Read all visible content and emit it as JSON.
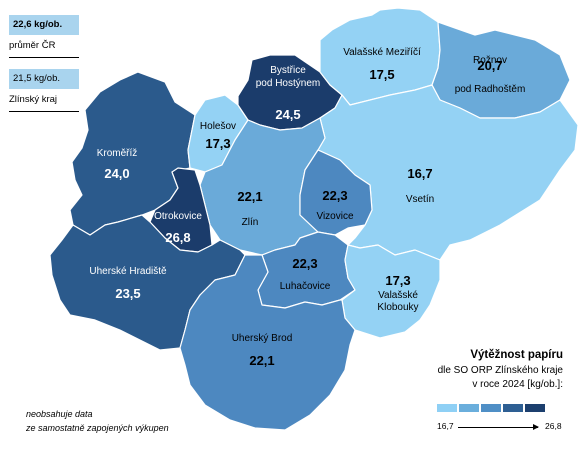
{
  "legend_boxes": {
    "cr": {
      "value": "22,6 kg/ob.",
      "label": "průměr ČR"
    },
    "zk": {
      "value": "21,5 kg/ob.",
      "label": "Zlínský kraj"
    }
  },
  "legend": {
    "title": "Výtěžnost papíru",
    "line1": "dle SO ORP Zlínského kraje",
    "line2": "v roce 2024 [kg/ob.]:",
    "min": "16,7",
    "max": "26,8",
    "colors": [
      "#8fd0f5",
      "#6aaedc",
      "#4f8fc6",
      "#2e5f93",
      "#1c3f6e"
    ]
  },
  "note": {
    "line1": "neobsahuje data",
    "line2": "ze samostatně zapojených výkupen"
  },
  "regions": [
    {
      "id": "kromeriz",
      "name": "Kroměříž",
      "value": "24,0",
      "color": "#2b5a8c",
      "text": "#ffffff"
    },
    {
      "id": "holesov",
      "name": "Holešov",
      "value": "17,3",
      "color": "#94d2f4",
      "text": "#000000"
    },
    {
      "id": "bystrice",
      "name": "Bystřice",
      "name2": "pod Hostýnem",
      "value": "24,5",
      "color": "#1b3c6b",
      "text": "#ffffff"
    },
    {
      "id": "valmez",
      "name": "Valašské Meziříčí",
      "value": "17,5",
      "color": "#94d2f4",
      "text": "#000000"
    },
    {
      "id": "roznov",
      "name": "Rožnov",
      "name2": "pod Radhoštěm",
      "value": "20,7",
      "color": "#6aaad9",
      "text": "#000000"
    },
    {
      "id": "vsetin",
      "name": "Vsetín",
      "value": "16,7",
      "color": "#94d2f4",
      "text": "#000000"
    },
    {
      "id": "zlin",
      "name": "Zlín",
      "value": "22,1",
      "color": "#6aaad9",
      "text": "#000000"
    },
    {
      "id": "vizovice",
      "name": "Vizovice",
      "value": "22,3",
      "color": "#4d88c0",
      "text": "#000000"
    },
    {
      "id": "otrokovice",
      "name": "Otrokovice",
      "value": "26,8",
      "color": "#1b3c6b",
      "text": "#ffffff"
    },
    {
      "id": "uh",
      "name": "Uherské Hradiště",
      "value": "23,5",
      "color": "#2b5a8c",
      "text": "#ffffff"
    },
    {
      "id": "luhacovice",
      "name": "Luhačovice",
      "value": "22,3",
      "color": "#4d88c0",
      "text": "#000000"
    },
    {
      "id": "valklob",
      "name": "Valašské",
      "name2": "Klobouky",
      "value": "17,3",
      "color": "#94d2f4",
      "text": "#000000"
    },
    {
      "id": "ub",
      "name": "Uherský Brod",
      "value": "22,1",
      "color": "#4d88c0",
      "text": "#000000"
    }
  ]
}
